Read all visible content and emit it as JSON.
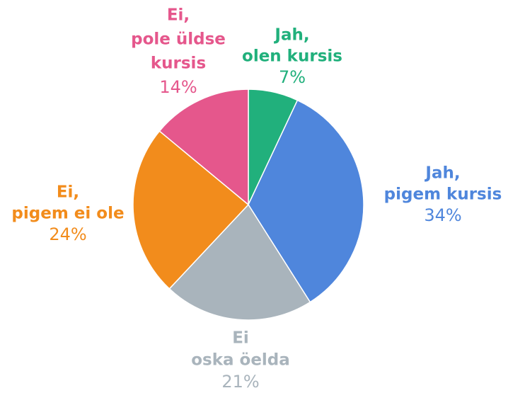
{
  "chart_data": {
    "type": "pie",
    "categories": [
      [
        "Jah,",
        "olen kursis"
      ],
      [
        "Jah,",
        "pigem kursis"
      ],
      [
        "Ei",
        "oska öelda"
      ],
      [
        "Ei,",
        "pigem ei ole"
      ],
      [
        "Ei,",
        "pole üldse",
        "kursis"
      ]
    ],
    "values": [
      7,
      34,
      21,
      24,
      14
    ],
    "value_labels": [
      "7%",
      "34%",
      "21%",
      "24%",
      "14%"
    ],
    "colors": [
      "#21b07c",
      "#4f86dc",
      "#a9b4bc",
      "#f28c1c",
      "#e5578c"
    ]
  }
}
